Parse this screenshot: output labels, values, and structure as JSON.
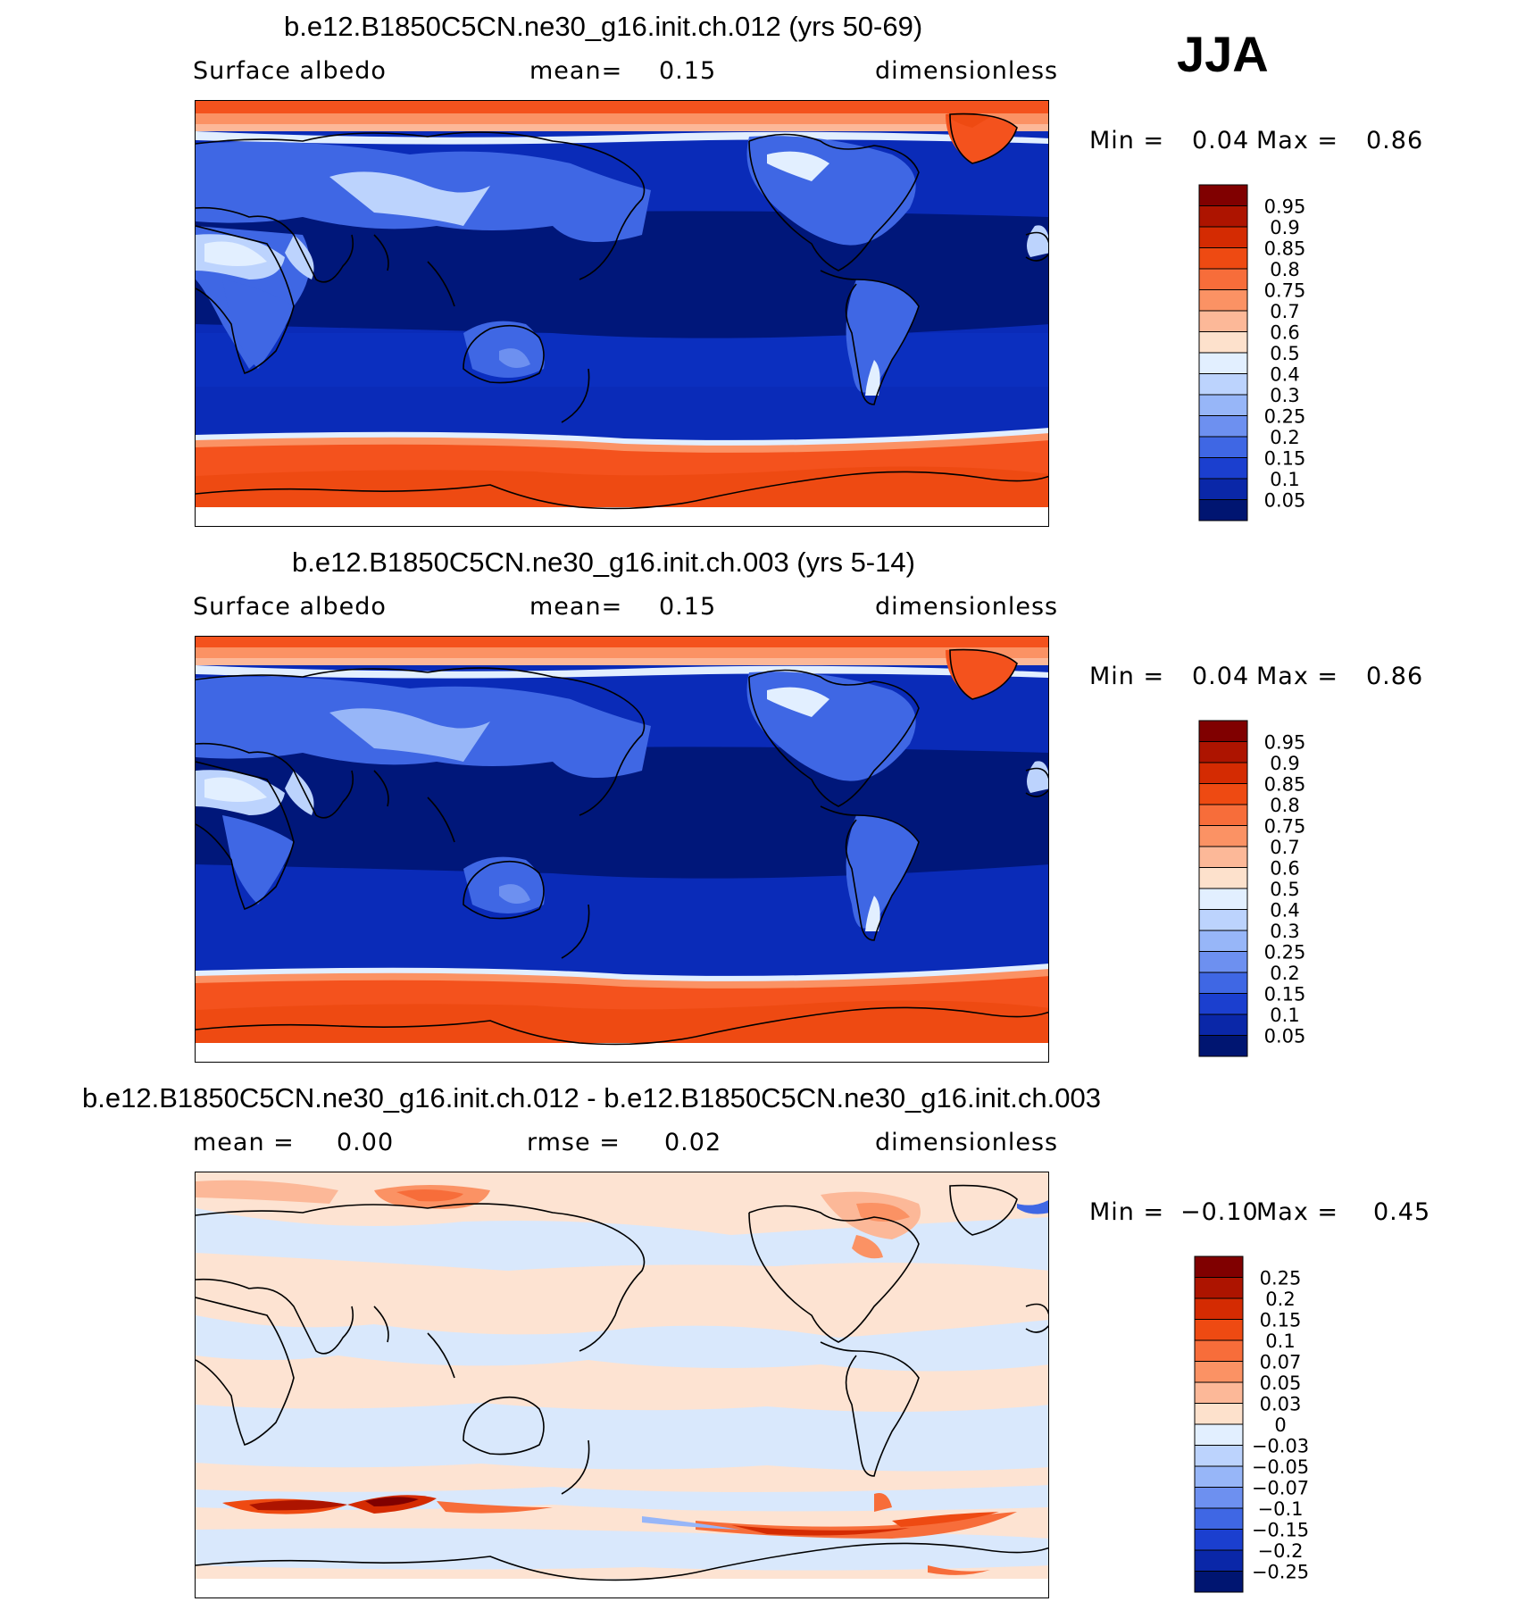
{
  "season_label": "JJA",
  "colors": {
    "ocean_deep": "#00177a",
    "ocean": "#0a2bb8",
    "land_blue": "#3a62e0",
    "light_blue": "#aac6fb",
    "pale": "#fde5d6",
    "ice_orange": "#f4521d",
    "diff_pos": "#fde3d2",
    "diff_neg": "#d9e8fc"
  },
  "panels": [
    {
      "title": "b.e12.B1850C5CN.ne30_g16.init.ch.012 (yrs 50-69)",
      "left_label": "Surface albedo",
      "middle_label": "mean=",
      "middle_value": "0.15",
      "units": "dimensionless",
      "min_label": "Min =",
      "min_value": "0.04",
      "max_label": "Max =",
      "max_value": "0.86",
      "colorbar": {
        "labels": [
          "0.95",
          "0.9",
          "0.85",
          "0.8",
          "0.75",
          "0.7",
          "0.6",
          "0.5",
          "0.4",
          "0.3",
          "0.25",
          "0.2",
          "0.15",
          "0.1",
          "0.05"
        ],
        "colors": [
          "#800000",
          "#ad1400",
          "#d42b02",
          "#ee4a12",
          "#f76d3a",
          "#fb9264",
          "#fcb898",
          "#fde1cc",
          "#e2efff",
          "#bcd3fd",
          "#97b6f8",
          "#6d90f0",
          "#3f67e4",
          "#1b3fcf",
          "#0a27a8",
          "#001571"
        ]
      }
    },
    {
      "title": "b.e12.B1850C5CN.ne30_g16.init.ch.003 (yrs 5-14)",
      "left_label": "Surface albedo",
      "middle_label": "mean=",
      "middle_value": "0.15",
      "units": "dimensionless",
      "min_label": "Min =",
      "min_value": "0.04",
      "max_label": "Max =",
      "max_value": "0.86",
      "colorbar": {
        "labels": [
          "0.95",
          "0.9",
          "0.85",
          "0.8",
          "0.75",
          "0.7",
          "0.6",
          "0.5",
          "0.4",
          "0.3",
          "0.25",
          "0.2",
          "0.15",
          "0.1",
          "0.05"
        ],
        "colors": [
          "#800000",
          "#ad1400",
          "#d42b02",
          "#ee4a12",
          "#f76d3a",
          "#fb9264",
          "#fcb898",
          "#fde1cc",
          "#e2efff",
          "#bcd3fd",
          "#97b6f8",
          "#6d90f0",
          "#3f67e4",
          "#1b3fcf",
          "#0a27a8",
          "#001571"
        ]
      }
    },
    {
      "title": "b.e12.B1850C5CN.ne30_g16.init.ch.012 - b.e12.B1850C5CN.ne30_g16.init.ch.003",
      "left_label": "mean =",
      "left_value": "0.00",
      "middle_label": "rmse =",
      "middle_value": "0.02",
      "units": "dimensionless",
      "min_label": "Min =",
      "min_value": "−0.10",
      "max_label": "Max =",
      "max_value": "0.45",
      "colorbar": {
        "labels": [
          "0.25",
          "0.2",
          "0.15",
          "0.1",
          "0.07",
          "0.05",
          "0.03",
          "0",
          "−0.03",
          "−0.05",
          "−0.07",
          "−0.1",
          "−0.15",
          "−0.2",
          "−0.25"
        ],
        "colors": [
          "#800000",
          "#ad1400",
          "#d42b02",
          "#ee4a12",
          "#f76d3a",
          "#fb9264",
          "#fcb898",
          "#fde1cc",
          "#e2efff",
          "#bcd3fd",
          "#97b6f8",
          "#6d90f0",
          "#3f67e4",
          "#1b3fcf",
          "#0a27a8",
          "#001571"
        ]
      }
    }
  ]
}
